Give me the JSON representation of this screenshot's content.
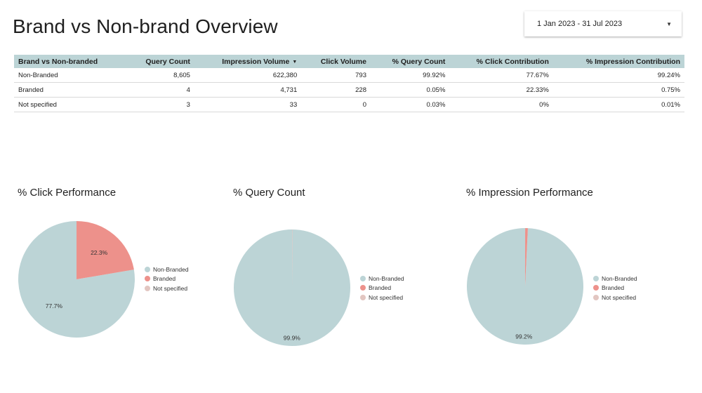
{
  "page": {
    "title": "Brand vs Non-brand Overview"
  },
  "date_range": {
    "label": "1 Jan 2023 - 31 Jul 2023",
    "icon": "caret-down-icon"
  },
  "colors": {
    "non_branded": "#bcd4d6",
    "branded": "#ed918b",
    "not_specified": "#e2c6c1",
    "header_bg": "#bcd4d6"
  },
  "table": {
    "columns": [
      "Brand vs Non-branded",
      "Query Count",
      "Impression Volume",
      "Click Volume",
      "% Query Count",
      "% Click Contribution",
      "% Impression Contribution"
    ],
    "sort_icon": "sort-desc-icon",
    "rows": [
      [
        "Non-Branded",
        "8,605",
        "622,380",
        "793",
        "99.92%",
        "77.67%",
        "99.24%"
      ],
      [
        "Branded",
        "4",
        "4,731",
        "228",
        "0.05%",
        "22.33%",
        "0.75%"
      ],
      [
        "Not specified",
        "3",
        "33",
        "0",
        "0.03%",
        "0%",
        "0.01%"
      ]
    ]
  },
  "chart_data": [
    {
      "type": "pie",
      "title": "% Click Performance",
      "labels": [
        "Non-Branded",
        "Branded",
        "Not specified"
      ],
      "values": [
        77.67,
        22.33,
        0
      ],
      "data_labels": [
        "77.7%",
        "22.3%",
        ""
      ],
      "legend": "right"
    },
    {
      "type": "pie",
      "title": "% Query Count",
      "labels": [
        "Non-Branded",
        "Branded",
        "Not specified"
      ],
      "values": [
        99.92,
        0.05,
        0.03
      ],
      "data_labels": [
        "99.9%",
        "",
        ""
      ],
      "legend": "right"
    },
    {
      "type": "pie",
      "title": "% Impression Performance",
      "labels": [
        "Non-Branded",
        "Branded",
        "Not specified"
      ],
      "values": [
        99.24,
        0.75,
        0.01
      ],
      "data_labels": [
        "99.2%",
        "",
        ""
      ],
      "legend": "right"
    }
  ]
}
